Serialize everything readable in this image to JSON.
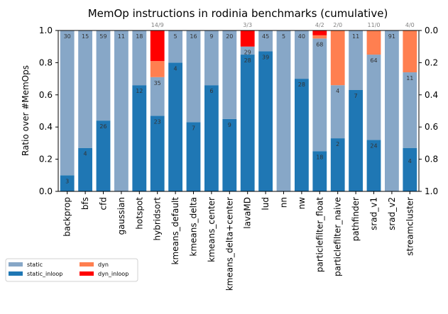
{
  "chart_data": {
    "type": "bar",
    "stacked": true,
    "title": "MemOp instructions in rodinia benchmarks (cumulative)",
    "ylabel": "Ratio over #MemOps",
    "ylim": [
      0,
      1
    ],
    "y_ticks_left": [
      "0.0",
      "0.2",
      "0.4",
      "0.6",
      "0.8",
      "1.0"
    ],
    "y_ticks_right": [
      "1.0",
      "0.8",
      "0.6",
      "0.4",
      "0.2",
      "0.0"
    ],
    "categories": [
      "backprop",
      "bfs",
      "cfd",
      "gaussian",
      "hotspot",
      "hybridsort",
      "kmeans_default",
      "kmeans_delta",
      "kmeans_center",
      "kmeans_delta+center",
      "lavaMD",
      "lud",
      "nn",
      "nw",
      "particlefilter_float",
      "particlefilter_naive",
      "pathfinder",
      "srad_v1",
      "srad_v2",
      "streamcluster"
    ],
    "series": [
      {
        "name": "static_inloop",
        "color": "#1f77b4",
        "values": [
          0.1,
          0.27,
          0.44,
          0.0,
          0.66,
          0.47,
          0.8,
          0.43,
          0.66,
          0.45,
          0.85,
          0.87,
          0.0,
          0.7,
          0.25,
          0.33,
          0.63,
          0.32,
          0.0,
          0.27
        ]
      },
      {
        "name": "static",
        "color": "#87a7c7",
        "values": [
          0.9,
          0.73,
          0.56,
          1.0,
          0.34,
          0.24,
          0.2,
          0.57,
          0.34,
          0.55,
          0.05,
          0.13,
          1.0,
          0.3,
          0.7,
          0.33,
          0.37,
          0.53,
          1.0,
          0.47
        ]
      },
      {
        "name": "dyn",
        "color": "#ff7f50",
        "values": [
          0,
          0,
          0,
          0,
          0,
          0.1,
          0,
          0,
          0,
          0,
          0,
          0,
          0,
          0,
          0.02,
          0.34,
          0,
          0.15,
          0,
          0.26
        ]
      },
      {
        "name": "dyn_inloop",
        "color": "#ff0000",
        "values": [
          0,
          0,
          0,
          0,
          0,
          0.19,
          0,
          0,
          0,
          0,
          0.1,
          0,
          0,
          0,
          0.03,
          0,
          0,
          0,
          0,
          0
        ]
      }
    ],
    "inloop_labels": [
      "3",
      "4",
      "26",
      "",
      "12",
      "23",
      "4",
      "7",
      "6",
      "9",
      "28",
      "39",
      "",
      "28",
      "18",
      "2",
      "7",
      "24",
      "",
      ""
    ],
    "static_labels": [
      "30",
      "15",
      "59",
      "11",
      "18",
      "35",
      "5",
      "16",
      "9",
      "20",
      "29",
      "45",
      "5",
      "40",
      "68",
      "4",
      "11",
      "64",
      "91",
      "11"
    ],
    "streamcluster_inloop_label": "4",
    "top_labels": [
      "",
      "",
      "",
      "",
      "",
      "14/9",
      "",
      "",
      "",
      "",
      "3/3",
      "",
      "",
      "",
      "4/2",
      "2/0",
      "",
      "11/0",
      "",
      "4/0"
    ],
    "legend": [
      {
        "name": "static",
        "color": "#87a7c7"
      },
      {
        "name": "static_inloop",
        "color": "#1f77b4"
      },
      {
        "name": "dyn",
        "color": "#ff7f50"
      },
      {
        "name": "dyn_inloop",
        "color": "#ff0000"
      }
    ],
    "legend_position": "lower-left outside",
    "grid": false
  }
}
